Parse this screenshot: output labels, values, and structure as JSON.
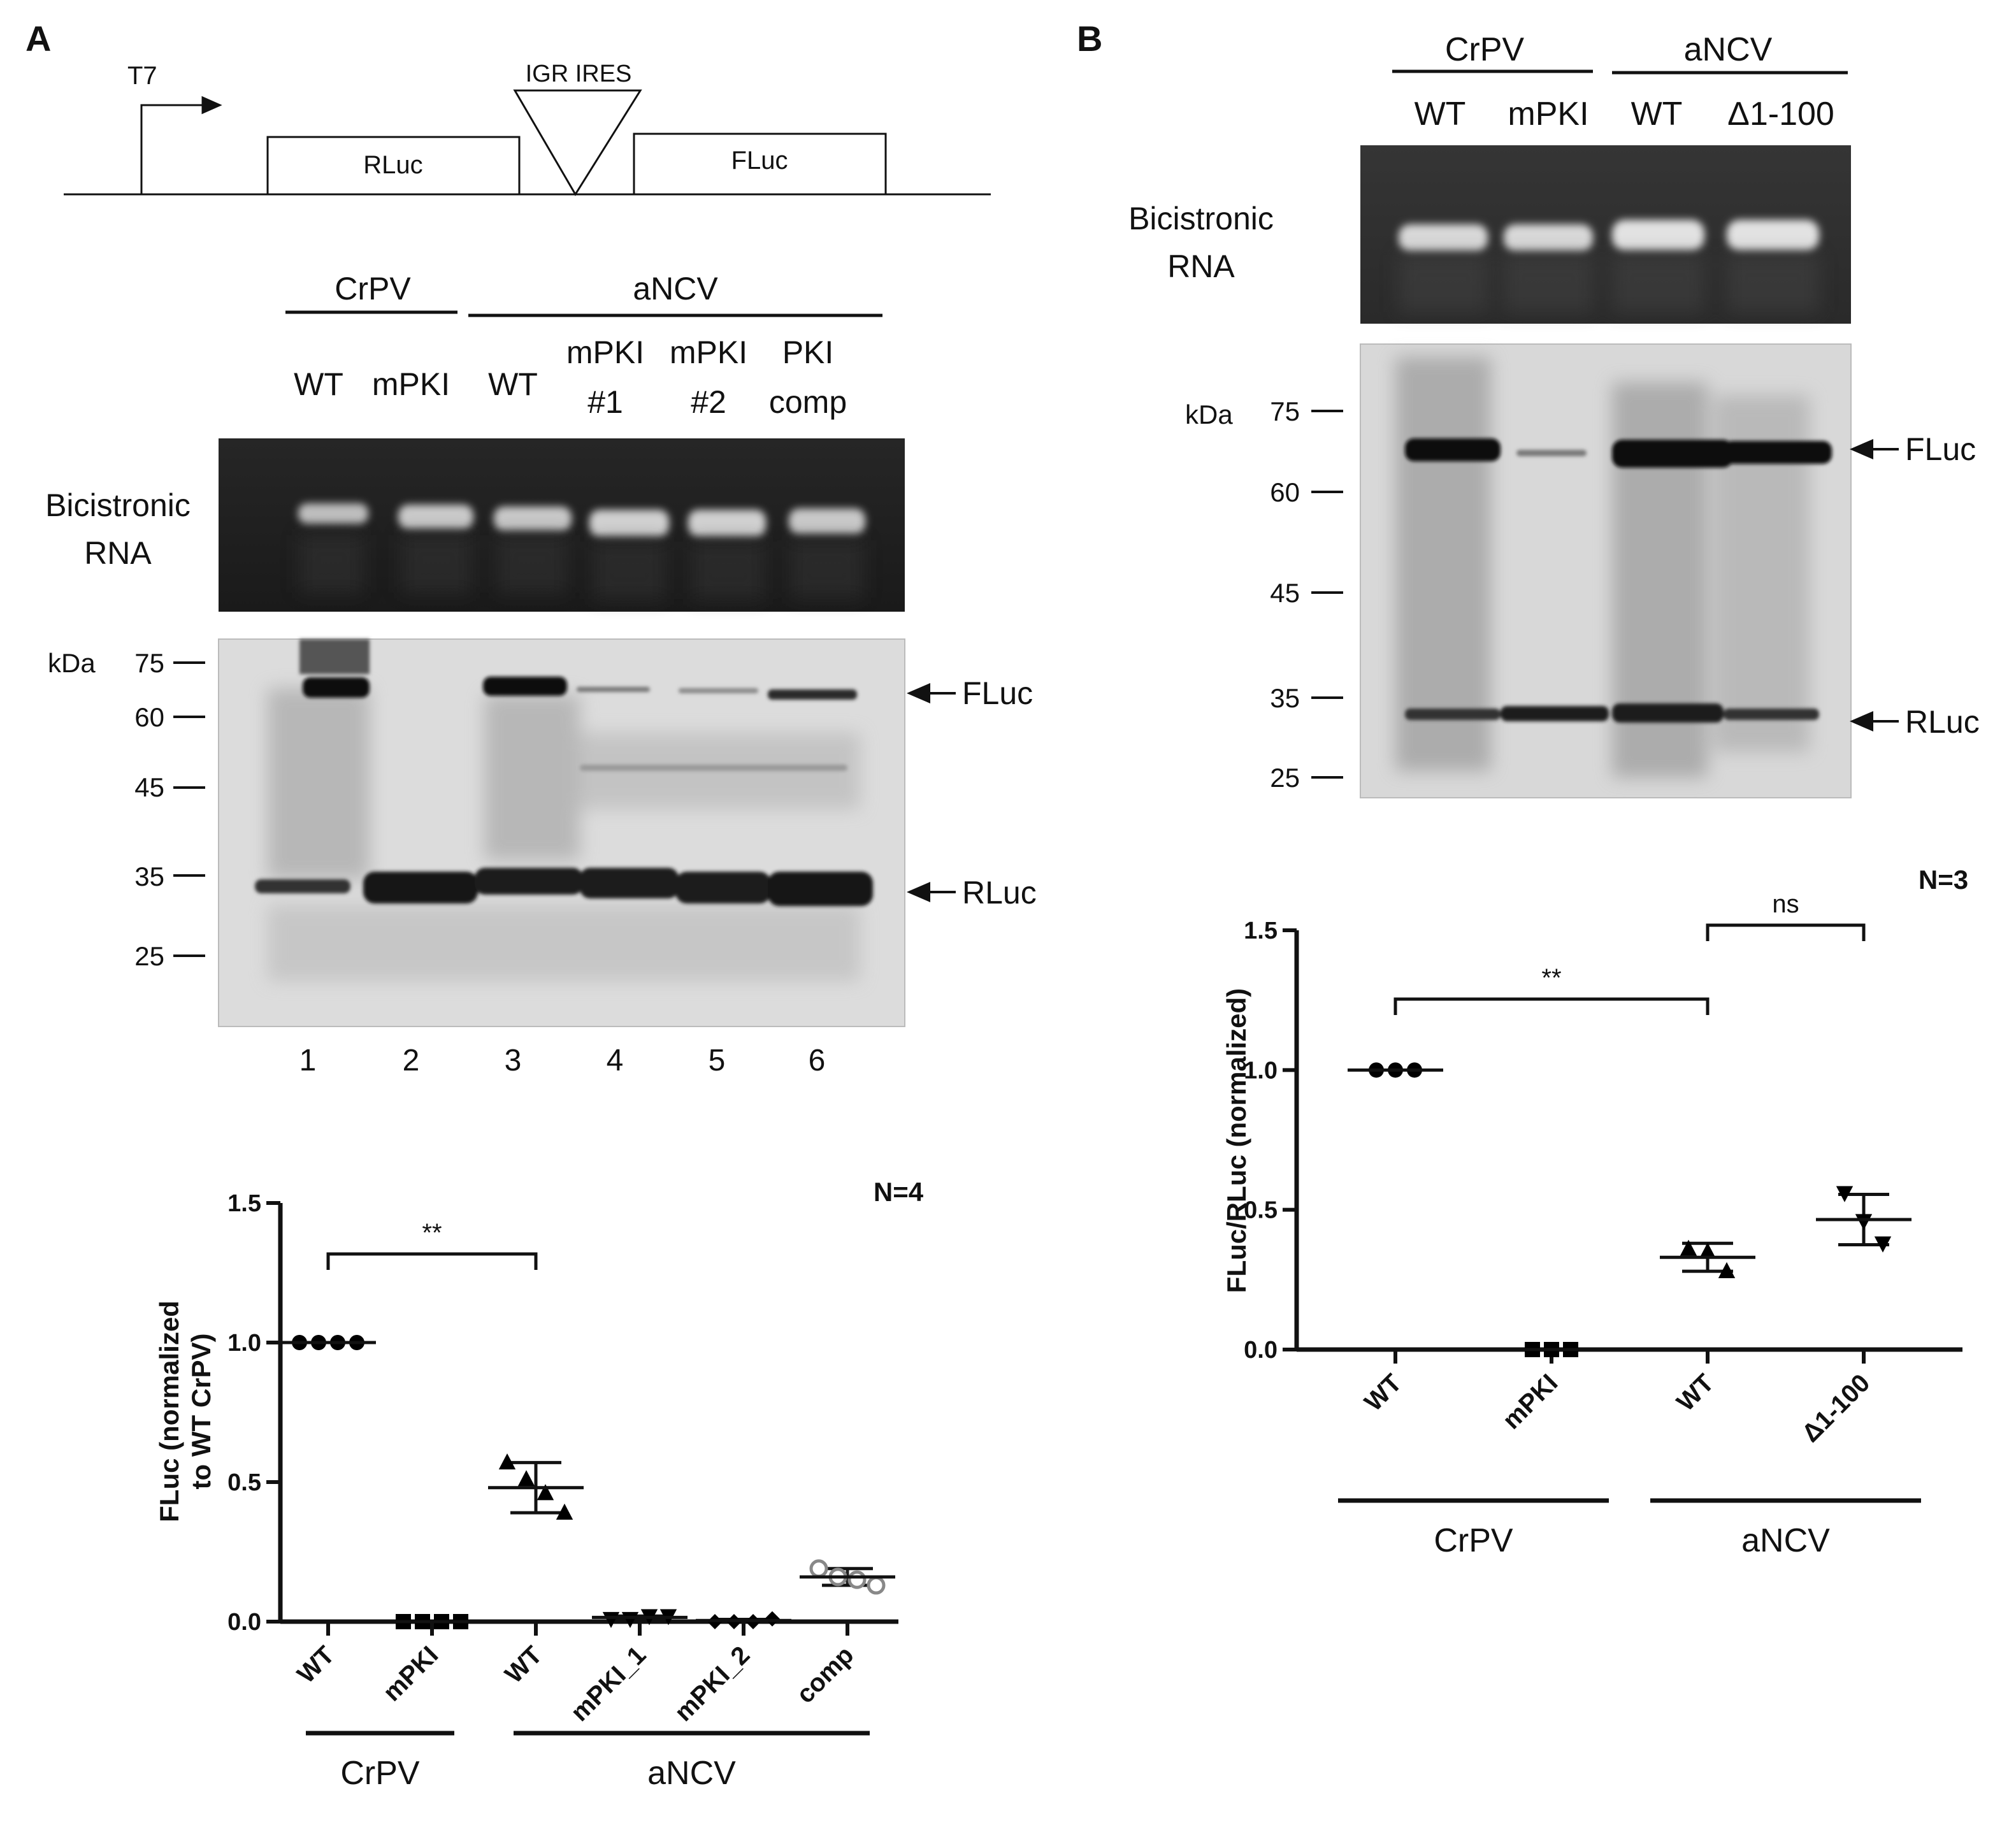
{
  "panelA": {
    "label": "A",
    "construct": {
      "promoter": "T7",
      "ires": "IGR IRES",
      "gene1": "RLuc",
      "gene2": "FLuc"
    },
    "groups": [
      {
        "name": "CrPV",
        "lanes": [
          "WT",
          "mPKI"
        ]
      },
      {
        "name": "aNCV",
        "lanes": [
          "WT",
          "mPKI\n#1",
          "mPKI\n#2",
          "PKI\ncomp"
        ]
      }
    ],
    "lane_headers": [
      {
        "line1": "WT",
        "line2": ""
      },
      {
        "line1": "mPKI",
        "line2": ""
      },
      {
        "line1": "WT",
        "line2": ""
      },
      {
        "line1": "mPKI",
        "line2": "#1"
      },
      {
        "line1": "mPKI",
        "line2": "#2"
      },
      {
        "line1": "PKI",
        "line2": "comp"
      }
    ],
    "rna_label": [
      "Bicistronic",
      "RNA"
    ],
    "kda_label": "kDa",
    "markers": [
      "75",
      "60",
      "45",
      "35",
      "25"
    ],
    "band_labels": {
      "upper": "FLuc",
      "lower": "RLuc"
    },
    "lane_numbers": [
      "1",
      "2",
      "3",
      "4",
      "5",
      "6"
    ],
    "chart_data": {
      "type": "scatter",
      "ylabel": "FLuc (normalized to WT CrPV)",
      "ylabel_lines": [
        "FLuc (normalized",
        "to WT CrPV)"
      ],
      "ylim": [
        0,
        1.5
      ],
      "yticks": [
        "0.0",
        "0.5",
        "1.0",
        "1.5"
      ],
      "categories": [
        "WT",
        "mPKI",
        "WT",
        "mPKI_1",
        "mPKI_2",
        "comp"
      ],
      "groups": [
        {
          "name": "CrPV",
          "span": [
            0,
            1
          ]
        },
        {
          "name": "aNCV",
          "span": [
            2,
            5
          ]
        }
      ],
      "n_label": "N=4",
      "significance": [
        {
          "from": 0,
          "to": 2,
          "label": "**"
        }
      ],
      "series": [
        {
          "category": "WT",
          "marker": "circle",
          "color": "#000000",
          "values": [
            1.0,
            1.0,
            1.0,
            1.0
          ],
          "mean": 1.0,
          "sd": 0
        },
        {
          "category": "mPKI",
          "marker": "square",
          "color": "#000000",
          "values": [
            0.0,
            0.0,
            0.0,
            0.0
          ],
          "mean": 0.0,
          "sd": 0
        },
        {
          "category": "WT",
          "marker": "triangle-up",
          "color": "#000000",
          "values": [
            0.57,
            0.51,
            0.46,
            0.39
          ],
          "mean": 0.48,
          "sd": 0.09
        },
        {
          "category": "mPKI_1",
          "marker": "triangle-down",
          "color": "#000000",
          "values": [
            0.01,
            0.01,
            0.02,
            0.02
          ],
          "mean": 0.015,
          "sd": 0.005
        },
        {
          "category": "mPKI_2",
          "marker": "diamond",
          "color": "#000000",
          "values": [
            0.0,
            0.0,
            0.0,
            0.01
          ],
          "mean": 0.004,
          "sd": 0.004
        },
        {
          "category": "comp",
          "marker": "circle-open",
          "color": "#888888",
          "values": [
            0.19,
            0.16,
            0.15,
            0.13
          ],
          "mean": 0.16,
          "sd": 0.03
        }
      ]
    }
  },
  "panelB": {
    "label": "B",
    "groups": [
      {
        "name": "CrPV",
        "lanes": [
          "WT",
          "mPKI"
        ]
      },
      {
        "name": "aNCV",
        "lanes": [
          "WT",
          "Δ1-100"
        ]
      }
    ],
    "lane_headers": [
      "WT",
      "mPKI",
      "WT",
      "Δ1-100"
    ],
    "rna_label": [
      "Bicistronic",
      "RNA"
    ],
    "kda_label": "kDa",
    "markers": [
      "75",
      "60",
      "45",
      "35",
      "25"
    ],
    "band_labels": {
      "upper": "FLuc",
      "lower": "RLuc"
    },
    "chart_data": {
      "type": "scatter",
      "ylabel": "FLuc/RLuc (normalized)",
      "ylim": [
        0,
        1.5
      ],
      "yticks": [
        "0.0",
        "0.5",
        "1.0",
        "1.5"
      ],
      "categories": [
        "WT",
        "mPKI",
        "WT",
        "Δ1-100"
      ],
      "groups": [
        {
          "name": "CrPV",
          "span": [
            0,
            1
          ]
        },
        {
          "name": "aNCV",
          "span": [
            2,
            3
          ]
        }
      ],
      "n_label": "N=3",
      "significance": [
        {
          "from": 0,
          "to": 2,
          "label": "**"
        },
        {
          "from": 2,
          "to": 3,
          "label": "ns"
        }
      ],
      "series": [
        {
          "category": "WT",
          "marker": "circle",
          "color": "#000000",
          "values": [
            1.0,
            1.0,
            1.0
          ],
          "mean": 1.0,
          "sd": 0
        },
        {
          "category": "mPKI",
          "marker": "square",
          "color": "#000000",
          "values": [
            0.0,
            0.0,
            0.0
          ],
          "mean": 0.0,
          "sd": 0
        },
        {
          "category": "WT",
          "marker": "triangle-up",
          "color": "#000000",
          "values": [
            0.36,
            0.35,
            0.28
          ],
          "mean": 0.33,
          "sd": 0.05
        },
        {
          "category": "Δ1-100",
          "marker": "triangle-down",
          "color": "#000000",
          "values": [
            0.56,
            0.46,
            0.38
          ],
          "mean": 0.465,
          "sd": 0.09
        }
      ]
    }
  }
}
